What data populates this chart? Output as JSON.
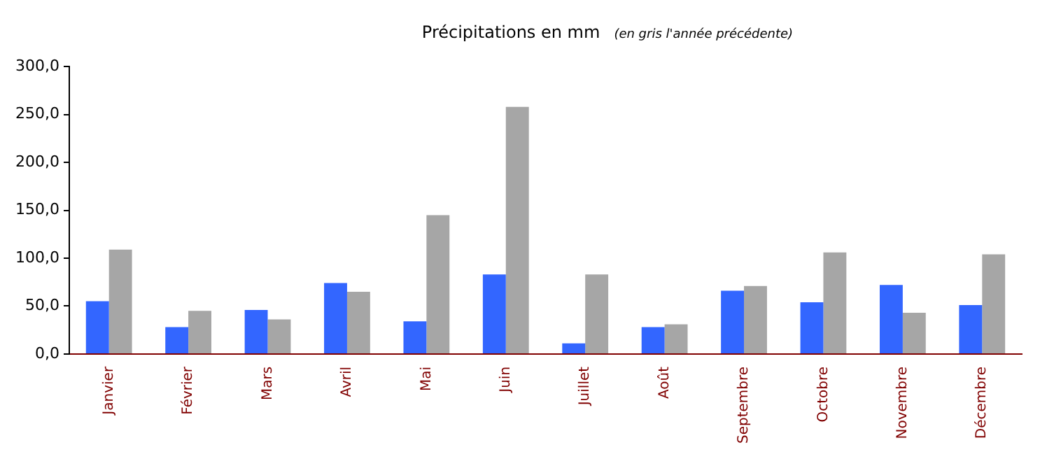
{
  "chart_data": {
    "type": "bar",
    "title": "Précipitations en mm",
    "subtitle": "(en gris l'année précédente)",
    "categories": [
      "Janvier",
      "Février",
      "Mars",
      "Avril",
      "Mai",
      "Juin",
      "Juillet",
      "Août",
      "Septembre",
      "Octobre",
      "Novembre",
      "Décembre"
    ],
    "series": [
      {
        "color": "#3366ff",
        "values": [
          55,
          28,
          46,
          74,
          34,
          83,
          11,
          28,
          66,
          54,
          72,
          51
        ]
      },
      {
        "color": "#a6a6a6",
        "values": [
          109,
          45,
          36,
          65,
          145,
          258,
          83,
          31,
          71,
          106,
          43,
          104
        ]
      }
    ],
    "ylim": [
      0,
      300
    ],
    "yticks": [
      {
        "value": 0,
        "label": "0,0"
      },
      {
        "value": 50,
        "label": "50,0"
      },
      {
        "value": 100,
        "label": "100,0"
      },
      {
        "value": 150,
        "label": "150,0"
      },
      {
        "value": 200,
        "label": "200,0"
      },
      {
        "value": 250,
        "label": "250,0"
      },
      {
        "value": 300,
        "label": "300,0"
      }
    ],
    "grid": false,
    "legend": false
  }
}
